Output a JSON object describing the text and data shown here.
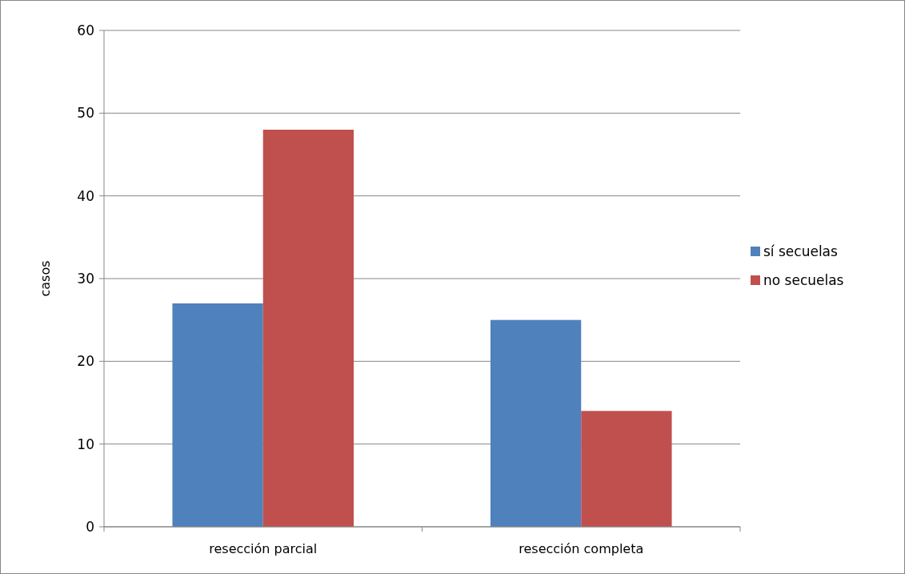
{
  "chart_data": {
    "type": "bar",
    "ylabel": "casos",
    "categories": [
      "resección parcial",
      "resección completa"
    ],
    "series": [
      {
        "name": "sí secuelas",
        "color": "#4f81bd",
        "values": [
          27,
          25
        ]
      },
      {
        "name": "no secuelas",
        "color": "#c0504d",
        "values": [
          48,
          14
        ]
      }
    ],
    "ylim": [
      0,
      60
    ],
    "yticks": [
      0,
      10,
      20,
      30,
      40,
      50,
      60
    ],
    "grid": "y",
    "legend": "right"
  }
}
